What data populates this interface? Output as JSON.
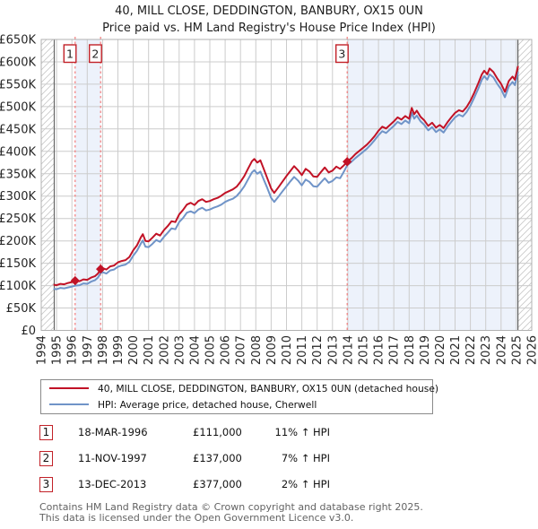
{
  "title": "40, MILL CLOSE, DEDDINGTON, BANBURY, OX15 0UN",
  "subtitle": "Price paid vs. HM Land Registry's House Price Index (HPI)",
  "legend": [
    {
      "label": "40, MILL CLOSE, DEDDINGTON, BANBURY, OX15 0UN (detached house)",
      "color": "#c11226"
    },
    {
      "label": "HPI: Average price, detached house, Cherwell",
      "color": "#7094c8"
    }
  ],
  "sales": [
    {
      "n": "1",
      "date": "18-MAR-1996",
      "price": "£111,000",
      "vs_hpi": "11% ↑ HPI",
      "year": 1996.21,
      "value_k": 111
    },
    {
      "n": "2",
      "date": "11-NOV-1997",
      "price": "£137,000",
      "vs_hpi": "7% ↑ HPI",
      "year": 1997.87,
      "value_k": 137
    },
    {
      "n": "3",
      "date": "13-DEC-2013",
      "price": "£377,000",
      "vs_hpi": "2% ↑ HPI",
      "year": 2013.96,
      "value_k": 377
    }
  ],
  "footer_lines": [
    "Contains HM Land Registry data © Crown copyright and database right 2025.",
    "This data is licensed under the Open Government Licence v3.0."
  ],
  "chart_data": {
    "type": "line",
    "title": "Price paid vs. HPI",
    "units": "GBP thousands",
    "x_range": [
      1994,
      2026
    ],
    "y_range_k": [
      0,
      650
    ],
    "y_tick_step_k": 50,
    "y_tick_labels": [
      "£0",
      "£50K",
      "£100K",
      "£150K",
      "£200K",
      "£250K",
      "£300K",
      "£350K",
      "£400K",
      "£450K",
      "£500K",
      "£550K",
      "£600K",
      "£650K"
    ],
    "x_ticks": [
      1994,
      1995,
      1996,
      1997,
      1998,
      1999,
      2000,
      2001,
      2002,
      2003,
      2004,
      2005,
      2006,
      2007,
      2008,
      2009,
      2010,
      2011,
      2012,
      2013,
      2014,
      2015,
      2016,
      2017,
      2018,
      2019,
      2020,
      2021,
      2022,
      2023,
      2024,
      2025,
      2026
    ],
    "data_start": 1994.85,
    "data_end": 2025.1,
    "bands": [
      [
        1996.21,
        1997.87
      ],
      [
        2013.96,
        2025.1
      ]
    ],
    "grid_color": "#cccccc",
    "band_color": "#edf2fb",
    "dashed_color": "#f47c7c",
    "hatch_color": "#c8c8c8",
    "border_color": "#b0b0b0",
    "edge_line_color": "#666666",
    "x": [
      1994.85,
      1995.0,
      1995.25,
      1995.5,
      1995.75,
      1996.0,
      1996.21,
      1996.5,
      1996.75,
      1997.0,
      1997.25,
      1997.5,
      1997.7,
      1997.87,
      1998.0,
      1998.25,
      1998.5,
      1998.75,
      1999.0,
      1999.25,
      1999.5,
      1999.75,
      2000.0,
      2000.25,
      2000.5,
      2000.63,
      2000.8,
      2001.0,
      2001.25,
      2001.5,
      2001.75,
      2002.0,
      2002.25,
      2002.5,
      2002.75,
      2003.0,
      2003.25,
      2003.5,
      2003.75,
      2004.0,
      2004.25,
      2004.5,
      2004.75,
      2005.0,
      2005.25,
      2005.5,
      2005.75,
      2006.0,
      2006.25,
      2006.5,
      2006.75,
      2007.0,
      2007.25,
      2007.5,
      2007.75,
      2007.9,
      2008.1,
      2008.3,
      2008.5,
      2008.75,
      2009.0,
      2009.2,
      2009.5,
      2009.75,
      2010.0,
      2010.25,
      2010.5,
      2010.75,
      2011.0,
      2011.25,
      2011.5,
      2011.75,
      2012.0,
      2012.25,
      2012.5,
      2012.75,
      2013.0,
      2013.25,
      2013.5,
      2013.75,
      2013.96,
      2014.25,
      2014.5,
      2014.75,
      2015.0,
      2015.25,
      2015.5,
      2015.75,
      2016.0,
      2016.25,
      2016.5,
      2016.75,
      2017.0,
      2017.25,
      2017.5,
      2017.75,
      2018.0,
      2018.17,
      2018.33,
      2018.5,
      2018.75,
      2019.0,
      2019.25,
      2019.5,
      2019.75,
      2020.0,
      2020.25,
      2020.5,
      2020.75,
      2021.0,
      2021.25,
      2021.5,
      2021.75,
      2022.0,
      2022.25,
      2022.5,
      2022.75,
      2022.9,
      2023.1,
      2023.25,
      2023.5,
      2023.75,
      2024.0,
      2024.25,
      2024.5,
      2024.75,
      2024.9,
      2025.1
    ],
    "series": [
      {
        "name": "40, MILL CLOSE, DEDDINGTON, BANBURY, OX15 0UN (detached house)",
        "color": "#c11226",
        "values": [
          102,
          101,
          104,
          103,
          106,
          108,
          111,
          110,
          114,
          113,
          118,
          121,
          127,
          137,
          139,
          136,
          143,
          145,
          152,
          155,
          157,
          164,
          179,
          190,
          208,
          215,
          200,
          199,
          207,
          216,
          212,
          224,
          233,
          244,
          242,
          259,
          269,
          281,
          285,
          280,
          289,
          293,
          287,
          289,
          293,
          296,
          301,
          307,
          311,
          315,
          321,
          332,
          345,
          362,
          378,
          383,
          375,
          380,
          362,
          340,
          317,
          307,
          321,
          333,
          345,
          356,
          367,
          358,
          347,
          361,
          355,
          344,
          343,
          354,
          364,
          353,
          357,
          366,
          361,
          369,
          377,
          385,
          394,
          401,
          408,
          415,
          424,
          434,
          446,
          455,
          451,
          459,
          467,
          476,
          471,
          479,
          473,
          497,
          483,
          491,
          477,
          469,
          457,
          464,
          453,
          459,
          452,
          465,
          476,
          486,
          492,
          489,
          499,
          513,
          531,
          551,
          572,
          580,
          572,
          585,
          577,
          563,
          551,
          533,
          557,
          567,
          560,
          589
        ]
      },
      {
        "name": "HPI: Average price, detached house, Cherwell",
        "color": "#7094c8",
        "values": [
          93,
          92,
          95,
          94,
          96,
          98,
          100,
          101,
          105,
          104,
          109,
          112,
          118,
          128,
          130,
          127,
          134,
          136,
          142,
          145,
          147,
          153,
          167,
          178,
          194,
          201,
          187,
          186,
          193,
          202,
          198,
          209,
          218,
          228,
          226,
          242,
          251,
          263,
          266,
          262,
          270,
          274,
          268,
          270,
          274,
          277,
          281,
          287,
          291,
          294,
          300,
          310,
          322,
          338,
          353,
          358,
          350,
          355,
          338,
          318,
          296,
          287,
          300,
          311,
          322,
          333,
          343,
          335,
          324,
          337,
          332,
          322,
          321,
          331,
          340,
          330,
          334,
          342,
          340,
          355,
          369,
          377,
          385,
          392,
          399,
          406,
          415,
          425,
          436,
          445,
          441,
          449,
          457,
          466,
          461,
          469,
          463,
          486,
          473,
          480,
          467,
          459,
          447,
          454,
          443,
          449,
          442,
          455,
          466,
          476,
          482,
          478,
          488,
          502,
          520,
          539,
          560,
          568,
          560,
          572,
          565,
          551,
          539,
          521,
          545,
          555,
          548,
          576
        ]
      }
    ]
  }
}
